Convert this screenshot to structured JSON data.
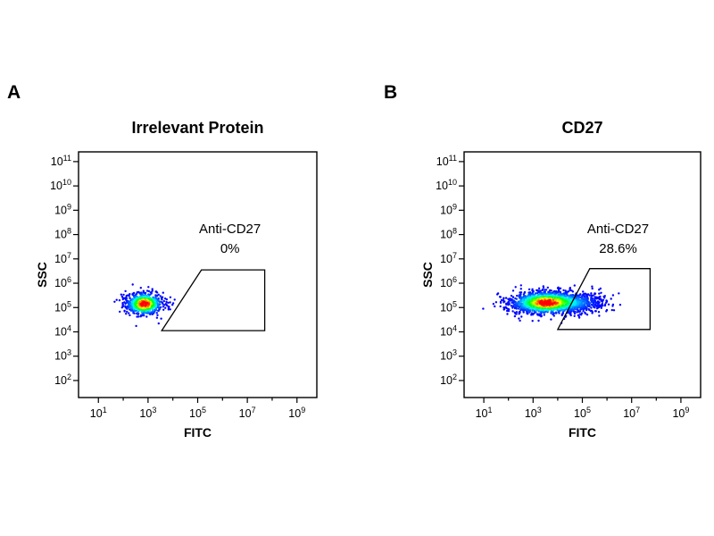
{
  "figure": {
    "background": "#ffffff",
    "description_colors": {
      "axis": "#000000",
      "gate_stroke": "#000000"
    },
    "colormap": "jet"
  },
  "chart_data": [
    {
      "type": "scatter",
      "panel_label": "A",
      "title": "Irrelevant Protein",
      "xlabel": "FITC",
      "ylabel": "SSC",
      "x_scale": "log10",
      "y_scale": "log10",
      "x_tick_exponents": [
        1,
        3,
        5,
        7,
        9
      ],
      "y_tick_exponents": [
        2,
        3,
        4,
        5,
        6,
        7,
        8,
        9,
        10,
        11
      ],
      "x_range_exp": [
        0.2,
        9.8
      ],
      "y_range_exp": [
        1.3,
        11.4
      ],
      "seed": 7,
      "clusters": [
        {
          "name": "main-population",
          "cx": 2.85,
          "cy": 5.15,
          "sx": 0.38,
          "sy": 0.24,
          "n": 750
        }
      ],
      "gate": {
        "label": "Anti-CD27",
        "percent": "0%",
        "vertices_exp": [
          [
            3.55,
            4.05
          ],
          [
            5.15,
            6.55
          ],
          [
            7.7,
            6.55
          ],
          [
            7.7,
            4.05
          ]
        ],
        "label_pos_exp": [
          6.3,
          8.05
        ],
        "percent_pos_exp": [
          6.3,
          7.25
        ]
      }
    },
    {
      "type": "scatter",
      "panel_label": "B",
      "title": "CD27",
      "xlabel": "FITC",
      "ylabel": "SSC",
      "x_scale": "log10",
      "y_scale": "log10",
      "x_tick_exponents": [
        1,
        3,
        5,
        7,
        9
      ],
      "y_tick_exponents": [
        2,
        3,
        4,
        5,
        6,
        7,
        8,
        9,
        10,
        11
      ],
      "x_range_exp": [
        0.2,
        9.8
      ],
      "y_range_exp": [
        1.3,
        11.4
      ],
      "seed": 21,
      "clusters": [
        {
          "name": "main-population",
          "cx": 3.55,
          "cy": 5.2,
          "sx": 0.75,
          "sy": 0.24,
          "n": 1500
        },
        {
          "name": "positive-tail",
          "cx": 5.05,
          "cy": 5.2,
          "sx": 0.5,
          "sy": 0.22,
          "n": 280
        }
      ],
      "gate": {
        "label": "Anti-CD27",
        "percent": "28.6%",
        "vertices_exp": [
          [
            4.0,
            4.1
          ],
          [
            5.3,
            6.6
          ],
          [
            7.75,
            6.6
          ],
          [
            7.75,
            4.1
          ]
        ],
        "label_pos_exp": [
          6.45,
          8.05
        ],
        "percent_pos_exp": [
          6.45,
          7.25
        ]
      }
    }
  ]
}
